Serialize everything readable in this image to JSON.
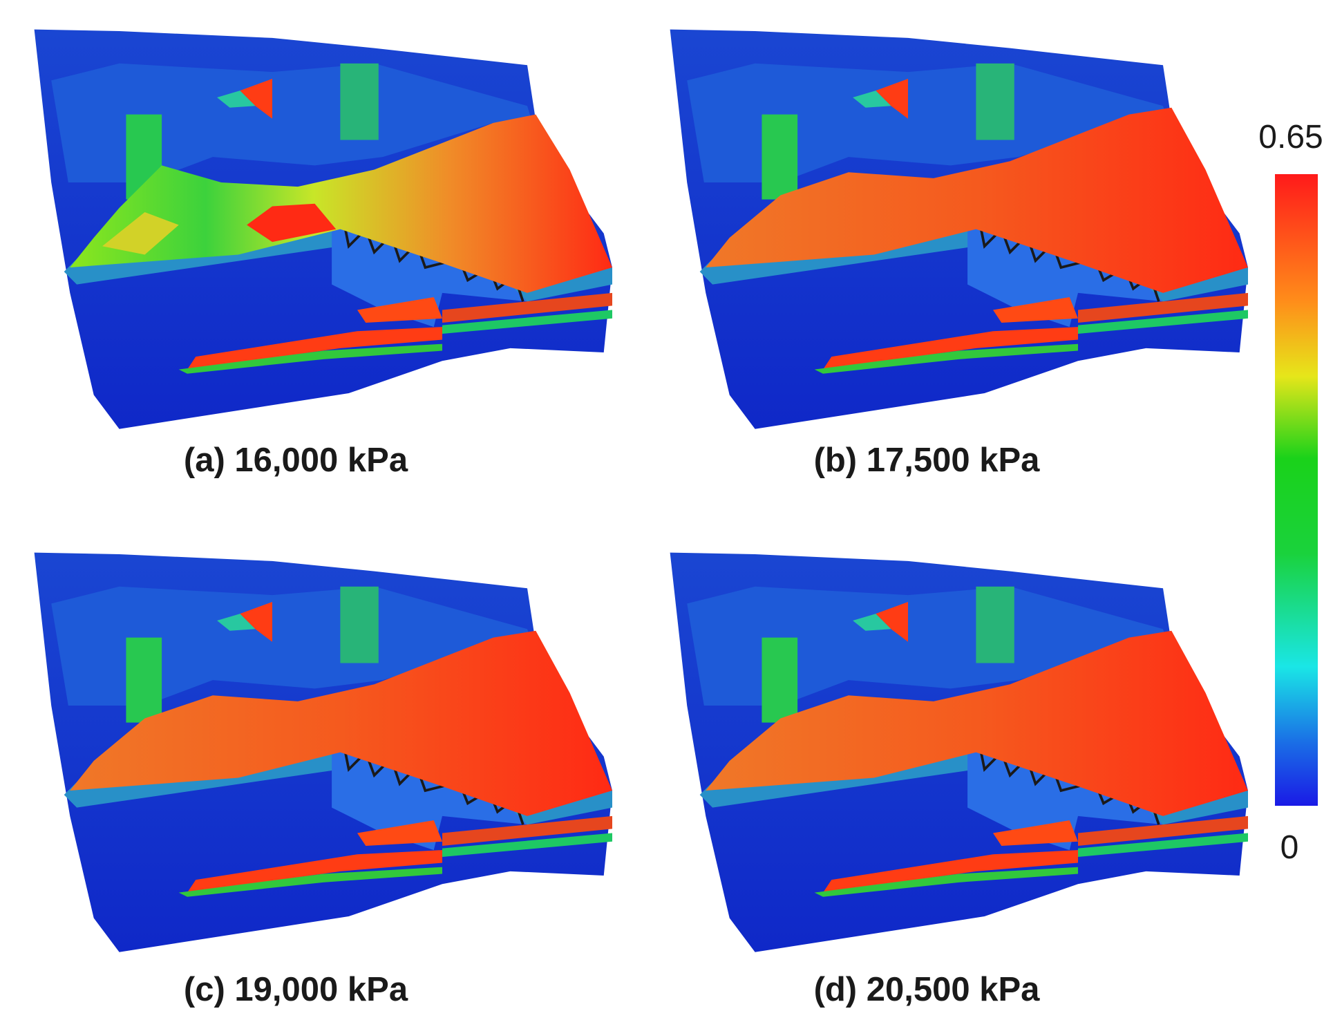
{
  "panels": [
    {
      "caption": "(a) 16,000 kPa"
    },
    {
      "caption": "(b) 17,500 kPa"
    },
    {
      "caption": "(c) 19,000 kPa"
    },
    {
      "caption": "(d) 20,500 kPa"
    }
  ],
  "colorbar": {
    "max_label": "0.65",
    "min_label": "0"
  }
}
